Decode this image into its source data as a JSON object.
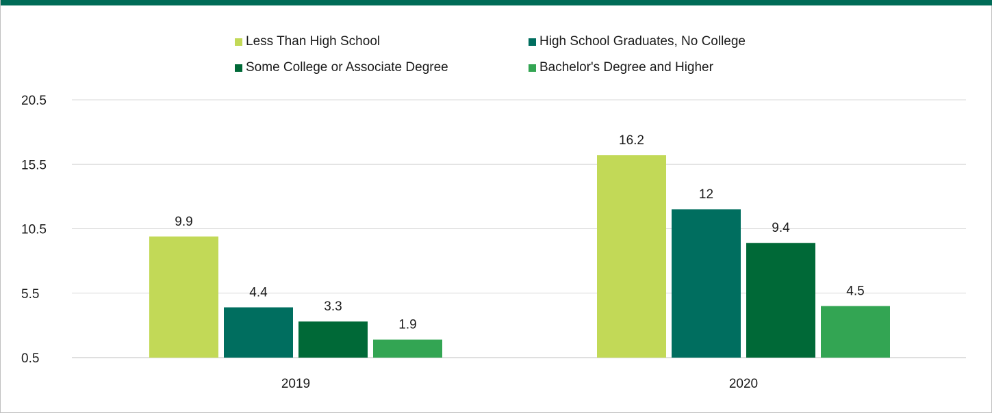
{
  "colors": {
    "top_band": "#006c57",
    "gridline": "#d9d9d9",
    "axis_line": "#bfbfbf",
    "text": "#1a1a1a"
  },
  "chart_data": {
    "type": "bar",
    "title": "",
    "xlabel": "",
    "ylabel": "",
    "categories": [
      "2019",
      "2020"
    ],
    "ylim": [
      0.5,
      20.5
    ],
    "yticks": [
      0.5,
      5.5,
      10.5,
      15.5,
      20.5
    ],
    "ytick_labels": [
      "0.5",
      "5.5",
      "10.5",
      "15.5",
      "20.5"
    ],
    "grid": true,
    "legend_position": "top",
    "series": [
      {
        "name": "Less Than High School",
        "color": "#c2d957",
        "values": [
          9.9,
          16.2
        ],
        "labels": [
          "9.9",
          "16.2"
        ]
      },
      {
        "name": "High School Graduates, No College",
        "color": "#006e5f",
        "values": [
          4.4,
          12
        ],
        "labels": [
          "4.4",
          "12"
        ]
      },
      {
        "name": "Some College or Associate Degree",
        "color": "#006937",
        "values": [
          3.3,
          9.4
        ],
        "labels": [
          "3.3",
          "9.4"
        ]
      },
      {
        "name": "Bachelor's Degree and Higher",
        "color": "#33a553",
        "values": [
          1.9,
          4.5
        ],
        "labels": [
          "1.9",
          "4.5"
        ]
      }
    ]
  }
}
